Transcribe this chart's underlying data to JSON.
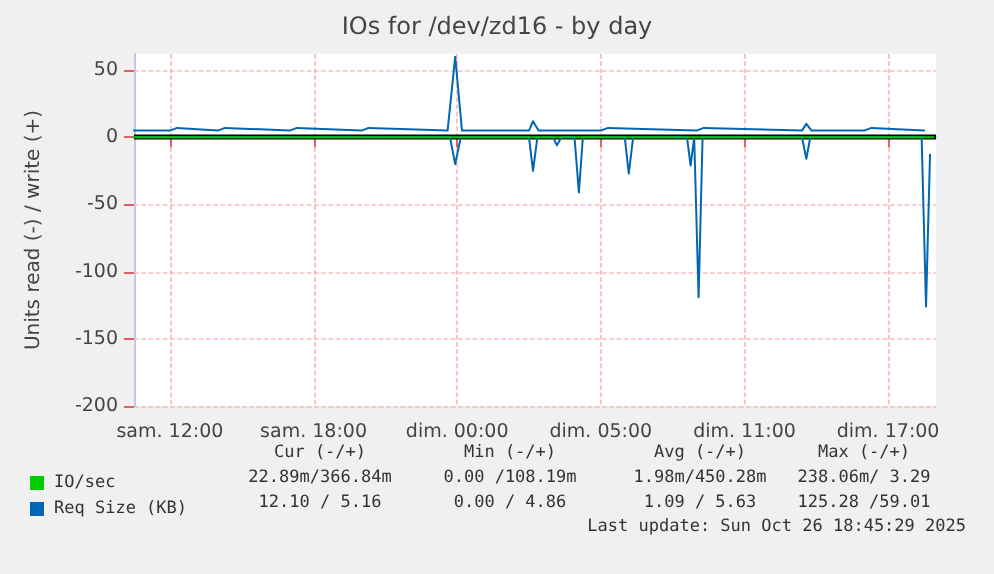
{
  "chart_data": {
    "type": "line",
    "title": "IOs for /dev/zd16 - by day",
    "ylabel": "Units read (-) / write (+)",
    "xlim": [
      "2025-10-25T08:30",
      "2025-10-26T18:00"
    ],
    "ylim": [
      -200,
      62
    ],
    "xticks": [
      {
        "value": "2025-10-25T10:00",
        "label": "sam. 12:00"
      },
      {
        "value": "2025-10-25T16:00",
        "label": "sam. 18:00"
      },
      {
        "value": "2025-10-25T22:00",
        "label": "dim. 00:00"
      },
      {
        "value": "2025-10-26T04:00",
        "label": "dim. 05:00"
      },
      {
        "value": "2025-10-26T10:00",
        "label": "dim. 11:00"
      },
      {
        "value": "2025-10-26T16:00",
        "label": "dim. 17:00"
      }
    ],
    "yticks": [
      50,
      0,
      -50,
      -100,
      -150,
      -200
    ],
    "grid": true,
    "legend": "bottom left",
    "marker": "none",
    "line_style": "solid",
    "ref_lines": [
      {
        "axis": "y",
        "value": 0,
        "color": "#000000"
      }
    ],
    "series": [
      {
        "name": "IO/sec",
        "color": "#00cc00",
        "x": [
          "2025-10-25T08:30",
          "2025-10-26T17:54"
        ],
        "values": [
          0,
          0
        ]
      },
      {
        "name": "Req Size (KB)",
        "color": "#0066b3",
        "x": [
          "2025-10-25T08:30",
          "2025-10-25T10:00",
          "2025-10-25T10:18",
          "2025-10-25T12:00",
          "2025-10-25T12:18",
          "2025-10-25T15:00",
          "2025-10-25T15:18",
          "2025-10-25T18:00",
          "2025-10-25T18:18",
          "2025-10-25T21:36",
          "2025-10-25T21:55",
          "2025-10-25T22:12",
          "2025-10-26T01:00",
          "2025-10-26T01:10",
          "2025-10-26T01:24",
          "2025-10-26T04:00",
          "2025-10-26T04:18",
          "2025-10-26T08:00",
          "2025-10-26T08:18",
          "2025-10-26T12:24",
          "2025-10-26T12:35",
          "2025-10-26T12:48",
          "2025-10-26T15:00",
          "2025-10-26T15:18",
          "2025-10-26T17:30"
        ],
        "values": [
          5,
          5,
          7,
          5,
          7,
          5,
          7,
          5,
          7,
          5,
          60,
          5,
          5,
          12,
          5,
          5,
          7,
          5,
          7,
          5,
          10,
          5,
          5,
          7,
          5
        ]
      },
      {
        "color": "#0066b3",
        "x": [
          "2025-10-25T08:30",
          "2025-10-25T21:42",
          "2025-10-25T21:55",
          "2025-10-25T22:09",
          "2025-10-26T01:00",
          "2025-10-26T01:10",
          "2025-10-26T01:21",
          "2025-10-26T02:00",
          "2025-10-26T02:10",
          "2025-10-26T02:21",
          "2025-10-26T02:54",
          "2025-10-26T03:05",
          "2025-10-26T03:15",
          "2025-10-26T05:00",
          "2025-10-26T05:10",
          "2025-10-26T05:21",
          "2025-10-26T07:36",
          "2025-10-26T07:45",
          "2025-10-26T07:54",
          "2025-10-26T08:05",
          "2025-10-26T08:15",
          "2025-10-26T12:24",
          "2025-10-26T12:35",
          "2025-10-26T12:45",
          "2025-10-26T17:24",
          "2025-10-26T17:35",
          "2025-10-26T17:45"
        ],
        "values": [
          0,
          0,
          -20,
          0,
          0,
          -25,
          0,
          0,
          -6,
          0,
          0,
          -41,
          0,
          0,
          -27,
          0,
          0,
          -21,
          0,
          -119,
          0,
          0,
          -16,
          0,
          0,
          -126,
          -13
        ]
      }
    ],
    "annotations": [
      "Cur (-/+)",
      "Min (-/+)",
      "Avg (-/+)",
      "Max (-/+)",
      "22.89m/366.84m",
      "0.00 /108.19m",
      "1.98m/450.28m",
      "238.06m/ 3.29",
      "12.10 / 5.16",
      "0.00 / 4.86",
      "1.09 / 5.63",
      "125.28 /59.01",
      "Last update: Sun Oct 26 18:45:29 2025"
    ]
  }
}
